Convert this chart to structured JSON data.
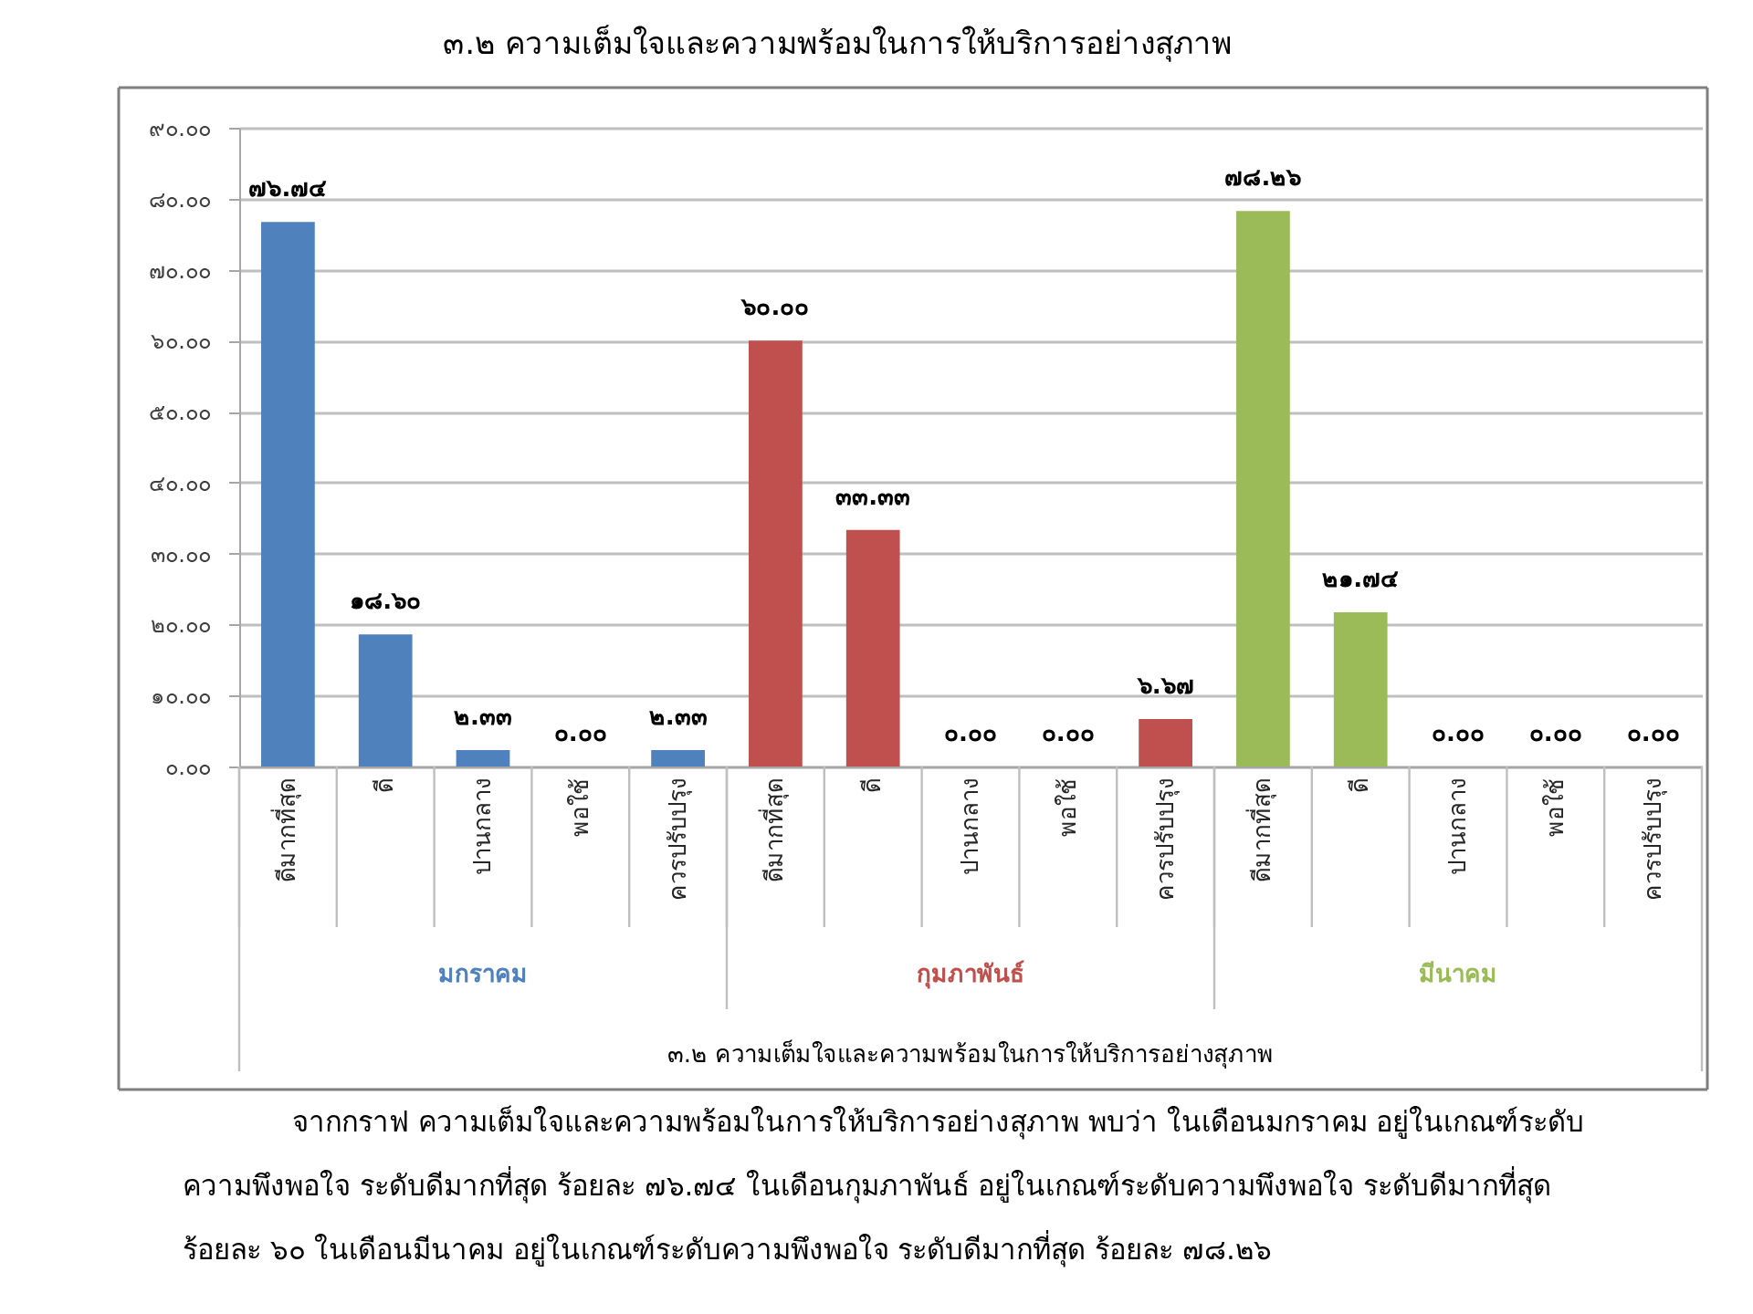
{
  "chart_data": {
    "type": "bar",
    "title": "๓.๒ ความเต็มใจและความพร้อมในการให้บริการอย่างสุภาพ",
    "categories": [
      "ดีมากที่สุด",
      "ดี",
      "ปานกลาง",
      "พอใช้",
      "ควรปรับปรุง",
      "ดีมากที่สุด",
      "ดี",
      "ปานกลาง",
      "พอใช้",
      "ควรปรับปรุง",
      "ดีมากที่สุด",
      "ดี",
      "ปานกลาง",
      "พอใช้",
      "ควรปรับปรุง"
    ],
    "series": [
      {
        "name": "มกราคม",
        "color": "#4f81bd",
        "values": [
          76.74,
          18.6,
          2.33,
          0.0,
          2.33,
          null,
          null,
          null,
          null,
          null,
          null,
          null,
          null,
          null,
          null
        ],
        "value_labels": [
          "๗๖.๗๔",
          "๑๘.๖๐",
          "๒.๓๓",
          "๐.๐๐",
          "๒.๓๓",
          null,
          null,
          null,
          null,
          null,
          null,
          null,
          null,
          null,
          null
        ]
      },
      {
        "name": "กุมภาพันธ์",
        "color": "#c0504d",
        "values": [
          null,
          null,
          null,
          null,
          null,
          60.0,
          33.33,
          0.0,
          0.0,
          6.67,
          null,
          null,
          null,
          null,
          null
        ],
        "value_labels": [
          null,
          null,
          null,
          null,
          null,
          "๖๐.๐๐",
          "๓๓.๓๓",
          "๐.๐๐",
          "๐.๐๐",
          "๖.๖๗",
          null,
          null,
          null,
          null,
          null
        ]
      },
      {
        "name": "มีนาคม",
        "color": "#9bbb59",
        "values": [
          null,
          null,
          null,
          null,
          null,
          null,
          null,
          null,
          null,
          null,
          78.26,
          21.74,
          0.0,
          0.0,
          0.0
        ],
        "value_labels": [
          null,
          null,
          null,
          null,
          null,
          null,
          null,
          null,
          null,
          null,
          "๗๘.๒๖",
          "๒๑.๗๔",
          "๐.๐๐",
          "๐.๐๐",
          "๐.๐๐"
        ]
      }
    ],
    "ylim": [
      0,
      90
    ],
    "yticks": [
      {
        "value": 0,
        "label": "๐.๐๐"
      },
      {
        "value": 10,
        "label": "๑๐.๐๐"
      },
      {
        "value": 20,
        "label": "๒๐.๐๐"
      },
      {
        "value": 30,
        "label": "๓๐.๐๐"
      },
      {
        "value": 40,
        "label": "๔๐.๐๐"
      },
      {
        "value": 50,
        "label": "๕๐.๐๐"
      },
      {
        "value": 60,
        "label": "๖๐.๐๐"
      },
      {
        "value": 70,
        "label": "๗๐.๐๐"
      },
      {
        "value": 80,
        "label": "๘๐.๐๐"
      },
      {
        "value": 90,
        "label": "๙๐.๐๐"
      }
    ],
    "grid": "y",
    "annotations": [
      "๓.๒ ความเต็มใจและความพร้อมในการให้บริการอย่างสุภาพ",
      "จากกราฟ ความเต็มใจและความพร้อมในการให้บริการอย่างสุภาพ พบว่า ในเดือนมกราคม อยู่ในเกณฑ์ระดับ",
      "ความพึงพอใจ ระดับดีมากที่สุด ร้อยละ ๗๖.๗๔ ในเดือนกุมภาพันธ์ อยู่ในเกณฑ์ระดับความพึงพอใจ ระดับดีมากที่สุด",
      "ร้อยละ ๖๐ ในเดือนมีนาคม อยู่ในเกณฑ์ระดับความพึงพอใจ  ระดับดีมากที่สุด ร้อยละ ๗๘.๒๖"
    ]
  }
}
